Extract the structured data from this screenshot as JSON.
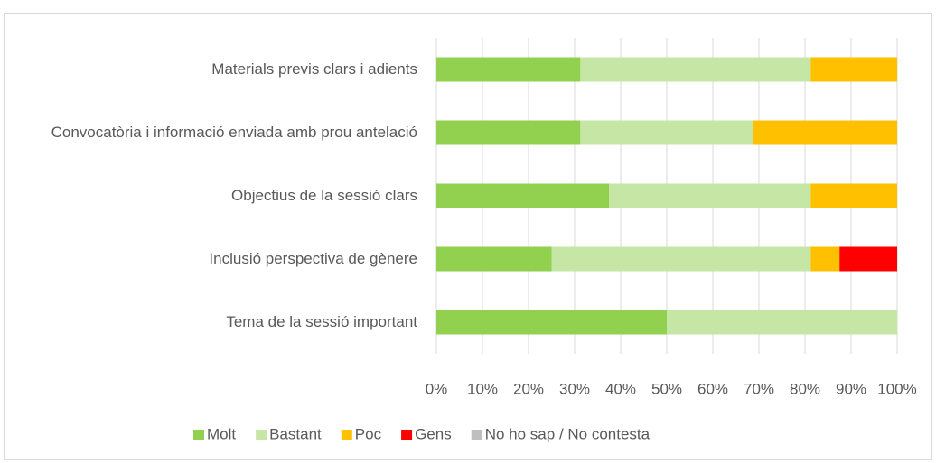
{
  "chart_data": {
    "type": "stacked-bar-horizontal",
    "categories": [
      "Materials previs clars i adients",
      "Convocatòria i informació enviada amb prou antelació",
      "Objectius de la sessió clars",
      "Inclusió perspectiva de gènere",
      "Tema de la sessió important"
    ],
    "series": [
      {
        "name": "Molt",
        "color": "#92d050",
        "values": [
          31.25,
          31.25,
          37.5,
          25,
          50
        ]
      },
      {
        "name": "Bastant",
        "color": "#c6e6a6",
        "values": [
          50,
          37.5,
          43.75,
          56.25,
          50
        ]
      },
      {
        "name": "Poc",
        "color": "#ffc000",
        "values": [
          18.75,
          31.25,
          18.75,
          6.25,
          0
        ]
      },
      {
        "name": "Gens",
        "color": "#ff0000",
        "values": [
          0,
          0,
          0,
          12.5,
          0
        ]
      },
      {
        "name": "No ho sap / No contesta",
        "color": "#bfbfbf",
        "values": [
          0,
          0,
          0,
          0,
          0
        ]
      }
    ],
    "xlim": [
      0,
      100
    ],
    "xticks": [
      {
        "value": 0,
        "label": "0%"
      },
      {
        "value": 10,
        "label": "10%"
      },
      {
        "value": 20,
        "label": "20%"
      },
      {
        "value": 30,
        "label": "30%"
      },
      {
        "value": 40,
        "label": "40%"
      },
      {
        "value": 50,
        "label": "50%"
      },
      {
        "value": 60,
        "label": "60%"
      },
      {
        "value": 70,
        "label": "70%"
      },
      {
        "value": 80,
        "label": "80%"
      },
      {
        "value": 90,
        "label": "90%"
      },
      {
        "value": 100,
        "label": "100%"
      }
    ],
    "grid": true,
    "legend": "bottom"
  }
}
